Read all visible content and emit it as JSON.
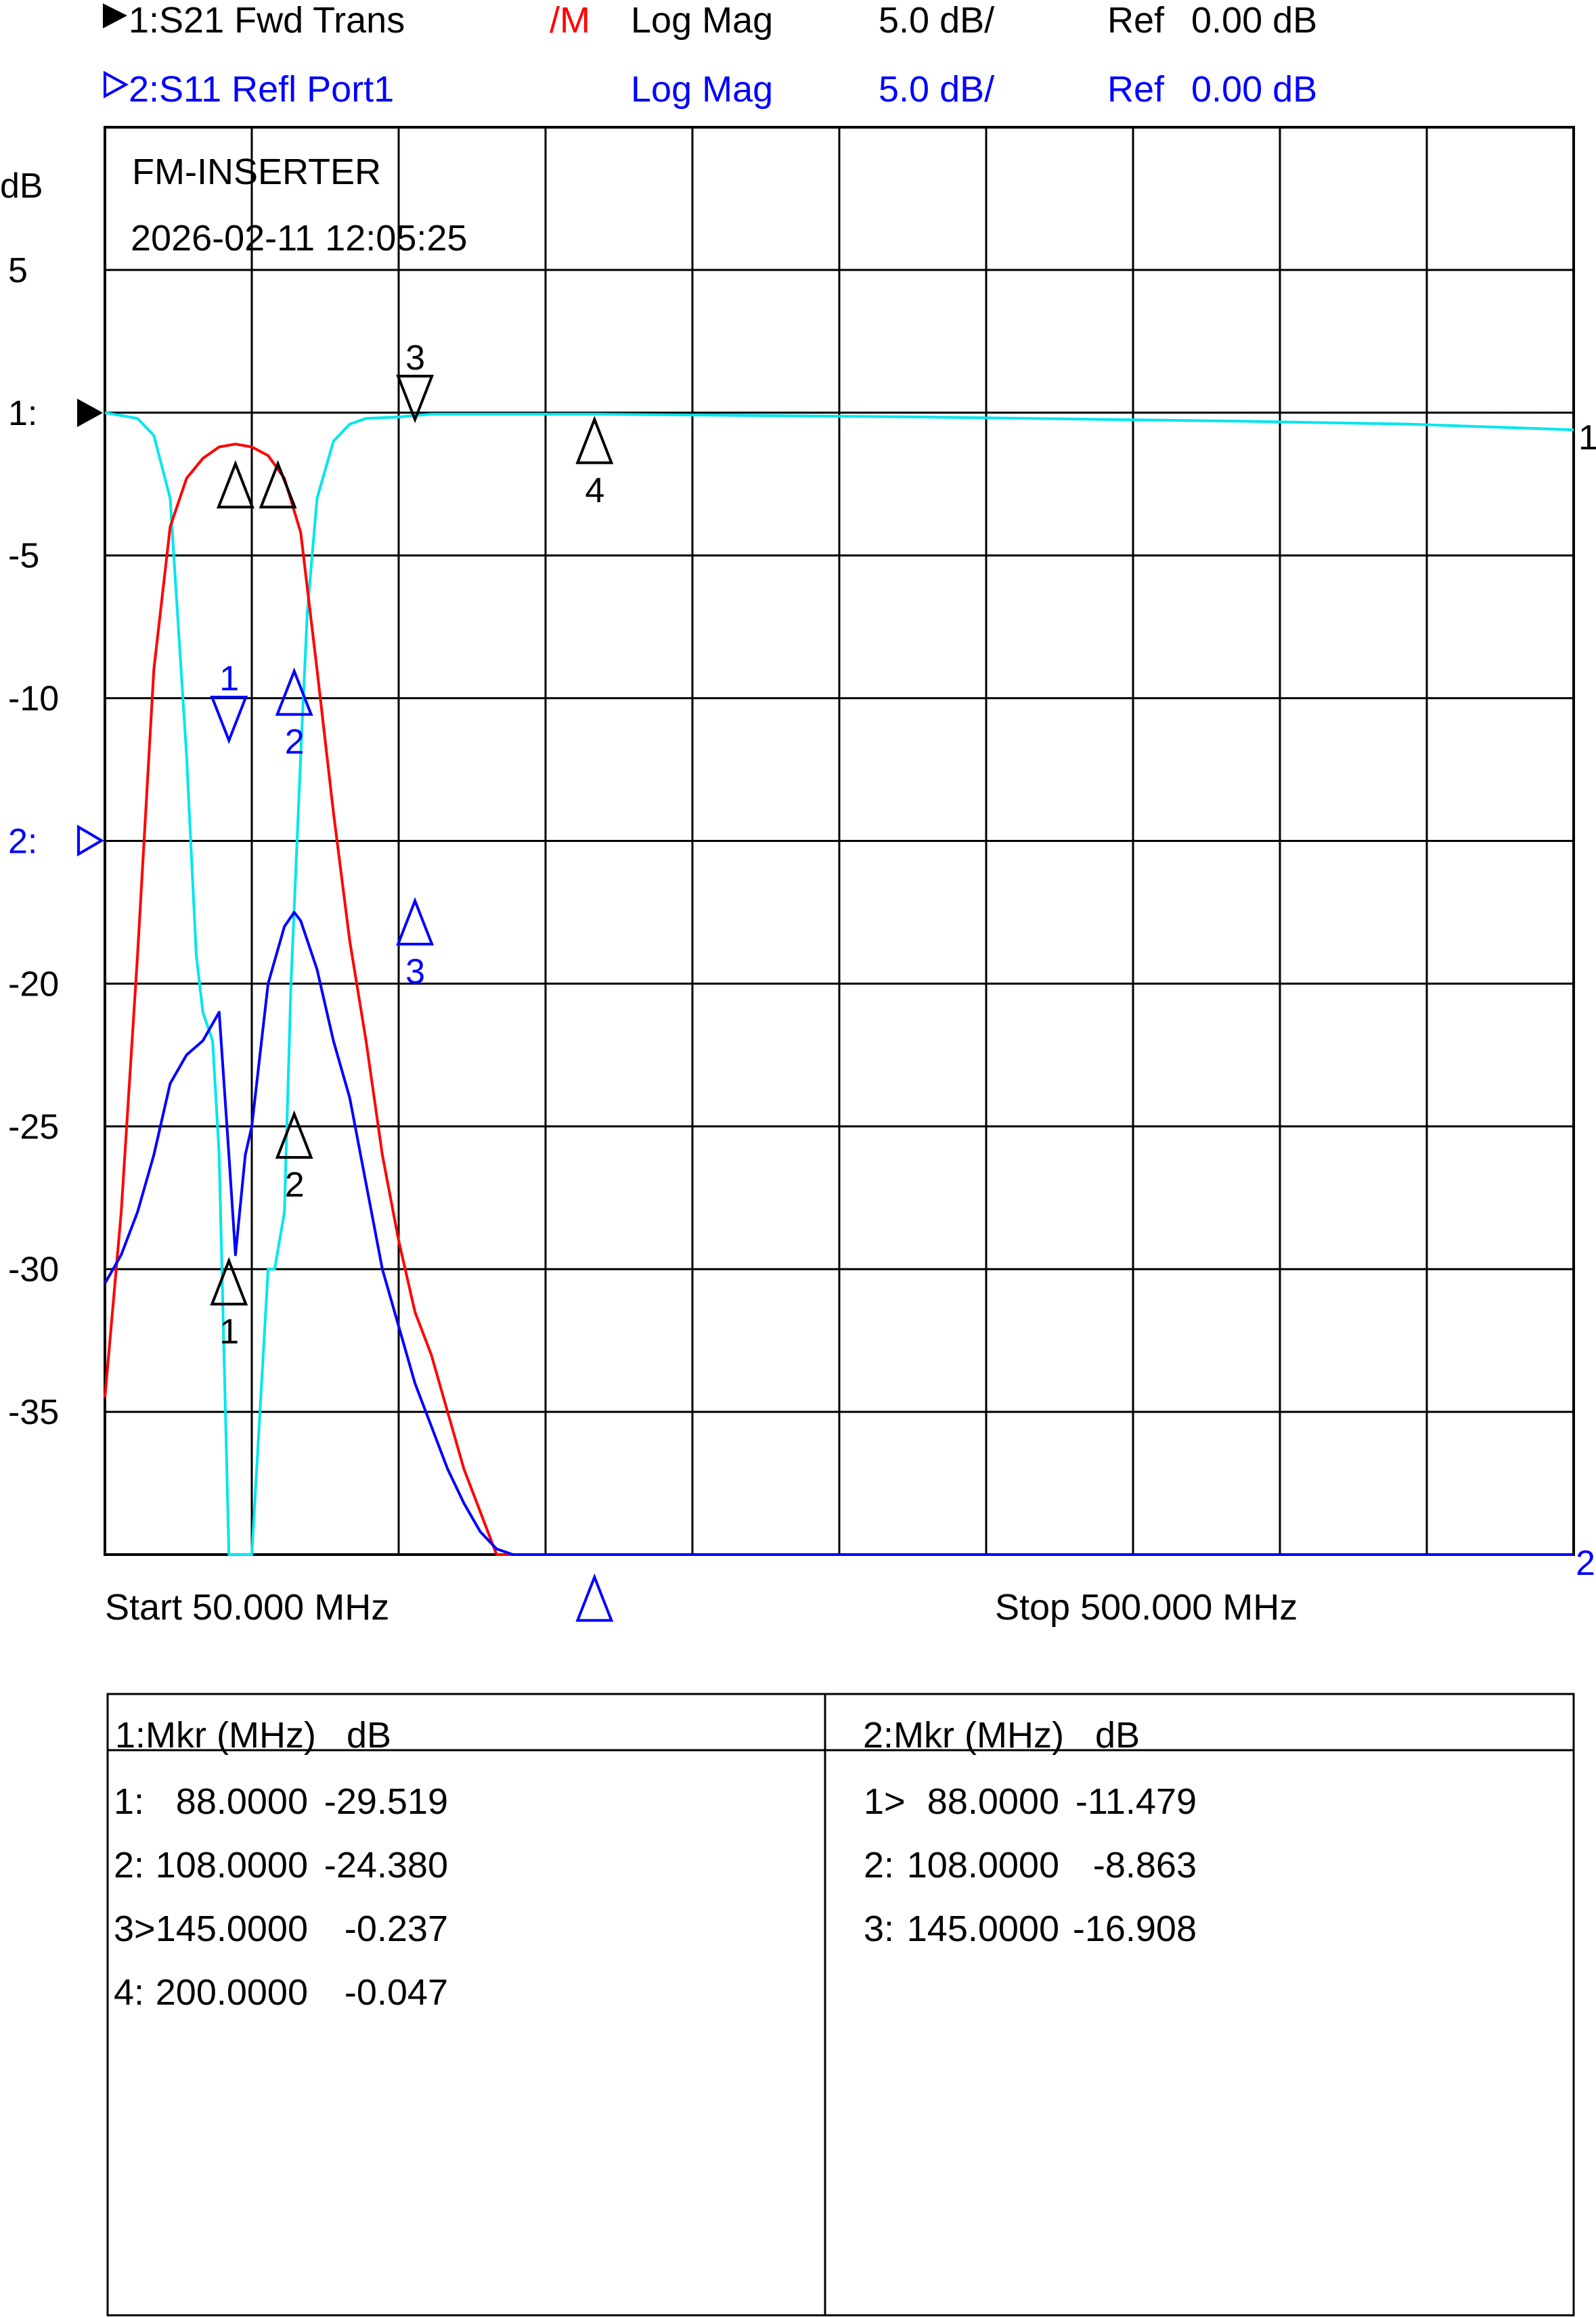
{
  "header": {
    "ch1": {
      "name": "1:S21 Fwd Trans",
      "mem": "/M",
      "format": "Log Mag",
      "scale": "5.0 dB/",
      "ref_label": "Ref",
      "ref_value": "0.00 dB"
    },
    "ch2": {
      "name": "2:S11 Refl Port1",
      "format": "Log Mag",
      "scale": "5.0 dB/",
      "ref_label": "Ref",
      "ref_value": "0.00 dB"
    }
  },
  "plot": {
    "unit": "dB",
    "title": "FM-INSERTER",
    "timestamp": "2026-02-11 12:05:25",
    "y_ticks": [
      "5",
      "1:",
      "-5",
      "-10",
      "2:",
      "-20",
      "-25",
      "-30",
      "-35"
    ],
    "right_labels": [
      "1",
      "2"
    ],
    "start_label": "Start 50.000 MHz",
    "stop_label": "Stop 500.000 MHz"
  },
  "chart_data": {
    "type": "line",
    "xlim": [
      50,
      500
    ],
    "ylim": [
      -40,
      10
    ],
    "x_unit": "MHz",
    "y_unit": "dB",
    "grid": true,
    "colors": {
      "s21": "#ff0000",
      "s11": "#0000ff",
      "s21_mem": "#00e5ee"
    },
    "series": [
      {
        "name": "1:S21 Fwd Trans",
        "color": "#ff0000",
        "x": [
          50,
          55,
          60,
          65,
          70,
          75,
          80,
          85,
          90,
          95,
          100,
          105,
          110,
          115,
          120,
          125,
          130,
          135,
          140,
          145,
          150,
          160,
          170,
          180,
          190,
          200,
          210,
          220,
          230,
          240,
          500
        ],
        "y": [
          -34.5,
          -28,
          -19,
          -9,
          -4,
          -2.3,
          -1.6,
          -1.2,
          -1.1,
          -1.2,
          -1.5,
          -2.3,
          -4.2,
          -9,
          -14,
          -18.5,
          -22,
          -26,
          -29,
          -31.5,
          -33,
          -37,
          -40,
          -40,
          -40,
          -40,
          -40,
          -40,
          -40,
          -40,
          -40
        ]
      },
      {
        "name": "2:S11 Refl Port1",
        "color": "#0000ff",
        "x": [
          50,
          55,
          60,
          65,
          70,
          75,
          80,
          85,
          88,
          90,
          93,
          95,
          100,
          105,
          108,
          110,
          115,
          120,
          125,
          130,
          135,
          140,
          145,
          150,
          155,
          160,
          165,
          170,
          175,
          180,
          200,
          500
        ],
        "y": [
          -30.5,
          -29.5,
          -28,
          -26,
          -23.5,
          -22.5,
          -22,
          -21,
          -26,
          -29.5,
          -26,
          -25,
          -20,
          -18,
          -17.5,
          -17.8,
          -19.5,
          -22,
          -24,
          -27,
          -30,
          -32,
          -34,
          -35.5,
          -37,
          -38.2,
          -39.2,
          -39.8,
          -40,
          -40,
          -40,
          -40
        ]
      },
      {
        "name": "1:S21 Fwd Trans /M",
        "color": "#00e5ee",
        "x": [
          50,
          60,
          65,
          70,
          75,
          78,
          80,
          83,
          85,
          88,
          90,
          92,
          95,
          98,
          100,
          102,
          105,
          107,
          110,
          112,
          115,
          120,
          125,
          130,
          140,
          145,
          150,
          200,
          300,
          400,
          450,
          500
        ],
        "y": [
          0,
          -0.2,
          -0.8,
          -3,
          -12,
          -19,
          -21,
          -22,
          -26,
          -40,
          -40,
          -40,
          -40,
          -34,
          -30,
          -30,
          -28,
          -20,
          -12,
          -7,
          -3,
          -1,
          -0.4,
          -0.2,
          -0.15,
          -0.1,
          -0.05,
          -0.05,
          -0.15,
          -0.3,
          -0.4,
          -0.6
        ]
      }
    ],
    "markers": [
      {
        "channel": 1,
        "label": "1",
        "x": 88,
        "y": -29.519,
        "dir": "up"
      },
      {
        "channel": 1,
        "label": "2",
        "x": 108,
        "y": -24.38,
        "dir": "up"
      },
      {
        "channel": 1,
        "label": "3",
        "x": 145,
        "y": -0.237,
        "dir": "down"
      },
      {
        "channel": 1,
        "label": "4",
        "x": 200,
        "y": -0.047,
        "dir": "up"
      },
      {
        "channel": 2,
        "label": "1",
        "x": 88,
        "y": -11.479,
        "dir": "down"
      },
      {
        "channel": 2,
        "label": "2",
        "x": 108,
        "y": -8.863,
        "dir": "up"
      },
      {
        "channel": 2,
        "label": "3",
        "x": 145,
        "y": -16.908,
        "dir": "up"
      },
      {
        "channel": 1,
        "label": "",
        "x": 90,
        "y": -1.6,
        "dir": "up"
      },
      {
        "channel": 1,
        "label": "",
        "x": 103,
        "y": -1.6,
        "dir": "up"
      },
      {
        "channel": 2,
        "label": "",
        "x": 200,
        "y": -40.6,
        "dir": "up"
      }
    ]
  },
  "table": {
    "left": {
      "header": [
        "1:Mkr (MHz)",
        "dB"
      ],
      "rows": [
        {
          "id": "1:",
          "freq": "88.0000",
          "val": "-29.519"
        },
        {
          "id": "2:",
          "freq": "108.0000",
          "val": "-24.380"
        },
        {
          "id": "3>",
          "freq": "145.0000",
          "val": "-0.237"
        },
        {
          "id": "4:",
          "freq": "200.0000",
          "val": "-0.047"
        }
      ]
    },
    "right": {
      "header": [
        "2:Mkr (MHz)",
        "dB"
      ],
      "rows": [
        {
          "id": "1>",
          "freq": "88.0000",
          "val": "-11.479"
        },
        {
          "id": "2:",
          "freq": "108.0000",
          "val": "-8.863"
        },
        {
          "id": "3:",
          "freq": "145.0000",
          "val": "-16.908"
        }
      ]
    }
  }
}
